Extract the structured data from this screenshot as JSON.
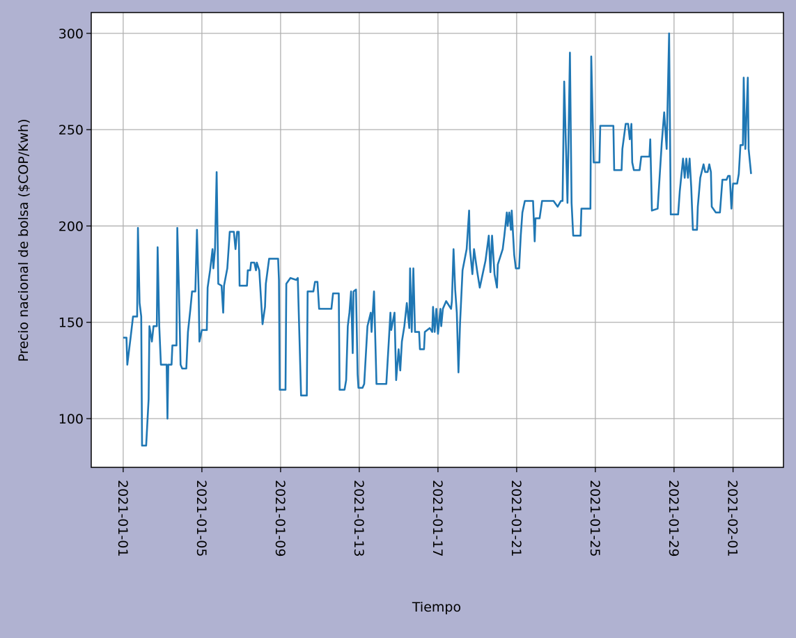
{
  "chart_data": {
    "type": "line",
    "xlabel": "Tiempo",
    "ylabel": "Precio nacional de bolsa ($COP/Kwh)",
    "color": "#1f77b4",
    "grid": true,
    "x": [
      "2021-01-01 00:00",
      "2021-01-01 04:00",
      "2021-01-01 05:00",
      "2021-01-01 09:00",
      "2021-01-01 12:00",
      "2021-01-01 17:00",
      "2021-01-01 18:00",
      "2021-01-01 20:00",
      "2021-01-01 22:00",
      "2021-01-01 23:00",
      "2021-01-02 04:00",
      "2021-01-02 07:00",
      "2021-01-02 08:00",
      "2021-01-02 11:00",
      "2021-01-02 13:00",
      "2021-01-02 17:00",
      "2021-01-02 18:00",
      "2021-01-02 20:00",
      "2021-01-02 22:00",
      "2021-01-03 05:00",
      "2021-01-03 06:00",
      "2021-01-03 07:00",
      "2021-01-03 11:00",
      "2021-01-03 12:00",
      "2021-01-03 17:00",
      "2021-01-03 18:00",
      "2021-01-03 20:00",
      "2021-01-03 22:00",
      "2021-01-04 00:00",
      "2021-01-04 05:00",
      "2021-01-04 07:00",
      "2021-01-04 10:00",
      "2021-01-04 12:00",
      "2021-01-04 16:00",
      "2021-01-04 18:00",
      "2021-01-04 20:00",
      "2021-01-04 21:00",
      "2021-01-05 00:00",
      "2021-01-05 06:00",
      "2021-01-05 07:00",
      "2021-01-05 10:00",
      "2021-01-05 13:00",
      "2021-01-05 14:00",
      "2021-01-05 16:00",
      "2021-01-05 18:00",
      "2021-01-05 20:00",
      "2021-01-06 00:00",
      "2021-01-06 02:00",
      "2021-01-06 03:00",
      "2021-01-06 07:00",
      "2021-01-06 10:00",
      "2021-01-06 15:00",
      "2021-01-06 17:00",
      "2021-01-06 19:00",
      "2021-01-06 21:00",
      "2021-01-06 22:00",
      "2021-01-07 07:00",
      "2021-01-07 08:00",
      "2021-01-07 11:00",
      "2021-01-07 12:00",
      "2021-01-07 16:00",
      "2021-01-07 18:00",
      "2021-01-07 19:00",
      "2021-01-07 22:00",
      "2021-01-07 23:00",
      "2021-01-08 02:00",
      "2021-01-08 05:00",
      "2021-01-08 06:00",
      "2021-01-08 10:00",
      "2021-01-08 21:00",
      "2021-01-08 22:00",
      "2021-01-08 23:00",
      "2021-01-09 06:00",
      "2021-01-09 07:00",
      "2021-01-09 12:00",
      "2021-01-09 19:00",
      "2021-01-09 21:00",
      "2021-01-10 01:00",
      "2021-01-10 08:00",
      "2021-01-10 09:00",
      "2021-01-10 16:00",
      "2021-01-10 18:00",
      "2021-01-10 21:00",
      "2021-01-10 23:00",
      "2021-01-11 14:00",
      "2021-01-11 16:00",
      "2021-01-11 23:00",
      "2021-01-12 00:00",
      "2021-01-12 06:00",
      "2021-01-12 08:00",
      "2021-01-12 10:00",
      "2021-01-12 12:00",
      "2021-01-12 14:00",
      "2021-01-12 16:00",
      "2021-01-12 17:00",
      "2021-01-12 20:00",
      "2021-01-12 22:00",
      "2021-01-12 23:00",
      "2021-01-13 04:00",
      "2021-01-13 06:00",
      "2021-01-13 10:00",
      "2021-01-13 14:00",
      "2021-01-13 15:00",
      "2021-01-13 18:00",
      "2021-01-13 21:00",
      "2021-01-14 09:00",
      "2021-01-14 12:00",
      "2021-01-14 14:00",
      "2021-01-14 15:00",
      "2021-01-14 19:00",
      "2021-01-14 21:00",
      "2021-01-15 00:00",
      "2021-01-15 02:00",
      "2021-01-15 04:00",
      "2021-01-15 07:00",
      "2021-01-15 10:00",
      "2021-01-15 13:00",
      "2021-01-15 14:00",
      "2021-01-15 16:00",
      "2021-01-15 18:00",
      "2021-01-15 20:00",
      "2021-01-16 01:00",
      "2021-01-16 02:00",
      "2021-01-16 07:00",
      "2021-01-16 08:00",
      "2021-01-16 14:00",
      "2021-01-16 17:00",
      "2021-01-16 18:00",
      "2021-01-16 20:00",
      "2021-01-16 22:00",
      "2021-01-17 00:00",
      "2021-01-17 03:00",
      "2021-01-17 04:00",
      "2021-01-17 06:00",
      "2021-01-17 10:00",
      "2021-01-17 16:00",
      "2021-01-17 17:00",
      "2021-01-17 19:00",
      "2021-01-17 21:00",
      "2021-01-17 23:00",
      "2021-01-18 01:00",
      "2021-01-18 03:00",
      "2021-01-18 06:00",
      "2021-01-18 11:00",
      "2021-01-18 14:00",
      "2021-01-18 15:00",
      "2021-01-18 18:00",
      "2021-01-18 20:00",
      "2021-01-19 00:00",
      "2021-01-19 03:00",
      "2021-01-19 07:00",
      "2021-01-19 10:00",
      "2021-01-19 14:00",
      "2021-01-19 16:00",
      "2021-01-19 18:00",
      "2021-01-19 21:00",
      "2021-01-20 00:00",
      "2021-01-20 01:00",
      "2021-01-20 07:00",
      "2021-01-20 09:00",
      "2021-01-20 12:00",
      "2021-01-20 13:00",
      "2021-01-20 15:00",
      "2021-01-20 17:00",
      "2021-01-20 18:00",
      "2021-01-20 21:00",
      "2021-01-20 23:00",
      "2021-01-21 03:00",
      "2021-01-21 05:00",
      "2021-01-21 07:00",
      "2021-01-21 10:00",
      "2021-01-21 20:00",
      "2021-01-21 22:00",
      "2021-01-21 23:00",
      "2021-01-22 04:00",
      "2021-01-22 07:00",
      "2021-01-22 21:00",
      "2021-01-23 02:00",
      "2021-01-23 06:00",
      "2021-01-23 08:00",
      "2021-01-23 10:00",
      "2021-01-23 14:00",
      "2021-01-23 17:00",
      "2021-01-23 19:00",
      "2021-01-23 21:00",
      "2021-01-24 06:00",
      "2021-01-24 07:00",
      "2021-01-24 18:00",
      "2021-01-24 19:00",
      "2021-01-24 22:00",
      "2021-01-25 05:00",
      "2021-01-25 06:00",
      "2021-01-25 22:00",
      "2021-01-25 23:00",
      "2021-01-26 08:00",
      "2021-01-26 09:00",
      "2021-01-26 13:00",
      "2021-01-26 16:00",
      "2021-01-26 18:00",
      "2021-01-26 20:00",
      "2021-01-26 21:00",
      "2021-01-26 23:00",
      "2021-01-27 06:00",
      "2021-01-27 08:00",
      "2021-01-27 18:00",
      "2021-01-27 19:00",
      "2021-01-27 21:00",
      "2021-01-28 04:00",
      "2021-01-28 09:00",
      "2021-01-28 12:00",
      "2021-01-28 15:00",
      "2021-01-28 18:00",
      "2021-01-28 20:00",
      "2021-01-29 05:00",
      "2021-01-29 07:00",
      "2021-01-29 11:00",
      "2021-01-29 13:00",
      "2021-01-29 15:00",
      "2021-01-29 17:00",
      "2021-01-29 19:00",
      "2021-01-29 21:00",
      "2021-01-29 23:00",
      "2021-01-30 04:00",
      "2021-01-30 05:00",
      "2021-01-30 08:00",
      "2021-01-30 12:00",
      "2021-01-30 14:00",
      "2021-01-30 17:00",
      "2021-01-30 19:00",
      "2021-01-30 21:00",
      "2021-01-30 22:00",
      "2021-01-31 03:00",
      "2021-01-31 08:00",
      "2021-01-31 11:00",
      "2021-01-31 16:00",
      "2021-01-31 18:00",
      "2021-01-31 20:00",
      "2021-01-31 22:00",
      "2021-02-01 00:00",
      "2021-02-01 05:00",
      "2021-02-01 07:00",
      "2021-02-01 09:00",
      "2021-02-01 12:00",
      "2021-02-01 13:00",
      "2021-02-01 15:00",
      "2021-02-01 18:00",
      "2021-02-01 19:00",
      "2021-02-01 22:00"
    ],
    "values": [
      142,
      142,
      128,
      142,
      153,
      153,
      199,
      160,
      153,
      86,
      86,
      110,
      148,
      140,
      148,
      148,
      189,
      148,
      128,
      128,
      100,
      128,
      128,
      138,
      138,
      199,
      167,
      128,
      126,
      126,
      145,
      157,
      166,
      166,
      198,
      167,
      140,
      146,
      146,
      168,
      177,
      188,
      178,
      188,
      228,
      170,
      169,
      155,
      169,
      178,
      197,
      197,
      188,
      197,
      197,
      169,
      169,
      177,
      177,
      181,
      181,
      177,
      181,
      177,
      170,
      149,
      158,
      170,
      183,
      183,
      172,
      115,
      115,
      170,
      173,
      172,
      173,
      112,
      112,
      166,
      166,
      171,
      171,
      157,
      157,
      165,
      165,
      115,
      115,
      120,
      148,
      155,
      166,
      134,
      166,
      167,
      123,
      116,
      116,
      118,
      148,
      155,
      145,
      166,
      118,
      118,
      140,
      155,
      146,
      155,
      120,
      136,
      125,
      140,
      148,
      160,
      147,
      178,
      145,
      178,
      145,
      145,
      136,
      136,
      145,
      147,
      145,
      158,
      145,
      157,
      144,
      157,
      148,
      157,
      161,
      157,
      161,
      188,
      167,
      155,
      124,
      150,
      177,
      188,
      208,
      188,
      175,
      188,
      176,
      168,
      176,
      182,
      195,
      176,
      195,
      175,
      168,
      180,
      188,
      195,
      207,
      200,
      207,
      198,
      208,
      185,
      178,
      178,
      195,
      207,
      213,
      213,
      192,
      204,
      204,
      213,
      213,
      210,
      213,
      213,
      275,
      212,
      290,
      212,
      195,
      195,
      209,
      209,
      288,
      233,
      233,
      252,
      252,
      229,
      229,
      240,
      253,
      253,
      245,
      253,
      233,
      229,
      229,
      236,
      236,
      245,
      208,
      209,
      243,
      259,
      240,
      300,
      206,
      206,
      218,
      235,
      225,
      235,
      225,
      235,
      220,
      198,
      198,
      210,
      225,
      232,
      228,
      228,
      232,
      228,
      210,
      207,
      207,
      224,
      224,
      226,
      226,
      209,
      222,
      222,
      227,
      242,
      242,
      277,
      240,
      277,
      240,
      227
    ],
    "xlim": [
      "2020-12-30 09:00",
      "2021-02-03 13:30"
    ],
    "xticks": [
      "2021-01-01",
      "2021-01-05",
      "2021-01-09",
      "2021-01-13",
      "2021-01-17",
      "2021-01-21",
      "2021-01-25",
      "2021-01-29",
      "2021-02-01"
    ],
    "ylim": [
      74.7,
      310.8
    ],
    "yticks": [
      100,
      150,
      200,
      250,
      300
    ]
  }
}
